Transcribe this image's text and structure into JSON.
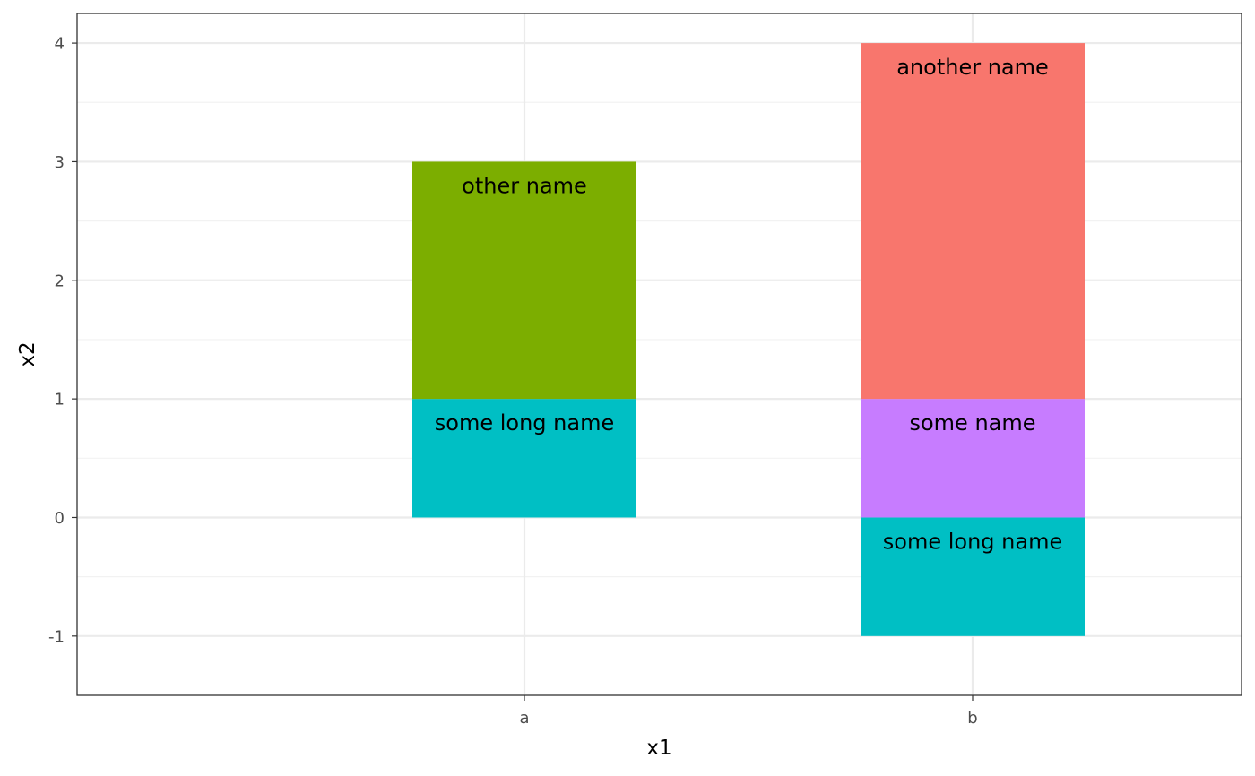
{
  "chart_data": {
    "type": "bar",
    "stacked": true,
    "categories": [
      "a",
      "b"
    ],
    "series": [
      {
        "label": "some long name",
        "color": "#00BFC4",
        "values": [
          1,
          -1
        ]
      },
      {
        "label": "other name",
        "color": "#7CAE00",
        "values": [
          2,
          0
        ]
      },
      {
        "label": "some name",
        "color": "#C77CFF",
        "values": [
          0,
          1
        ]
      },
      {
        "label": "another name",
        "color": "#F8766D",
        "values": [
          0,
          3
        ]
      }
    ],
    "segments": [
      {
        "category": "a",
        "label": "some long name",
        "from": 0,
        "to": 1,
        "color": "#00BFC4"
      },
      {
        "category": "a",
        "label": "other name",
        "from": 1,
        "to": 3,
        "color": "#7CAE00"
      },
      {
        "category": "b",
        "label": "some long name",
        "from": -1,
        "to": 0,
        "color": "#00BFC4"
      },
      {
        "category": "b",
        "label": "some name",
        "from": 0,
        "to": 1,
        "color": "#C77CFF"
      },
      {
        "category": "b",
        "label": "another name",
        "from": 1,
        "to": 4,
        "color": "#F8766D"
      }
    ],
    "xlabel": "x1",
    "ylabel": "x2",
    "ylim": [
      -1.5,
      4.25
    ],
    "y_major_ticks": [
      -1,
      0,
      1,
      2,
      3,
      4
    ],
    "y_minor_ticks": [
      -0.5,
      0.5,
      1.5,
      2.5,
      3.5
    ],
    "grid": true,
    "legend": "none",
    "theme": {
      "panel_border": "#333333",
      "grid_major": "#ebebeb",
      "grid_minor": "#f2f2f2",
      "tick_text": "#4d4d4d"
    }
  }
}
